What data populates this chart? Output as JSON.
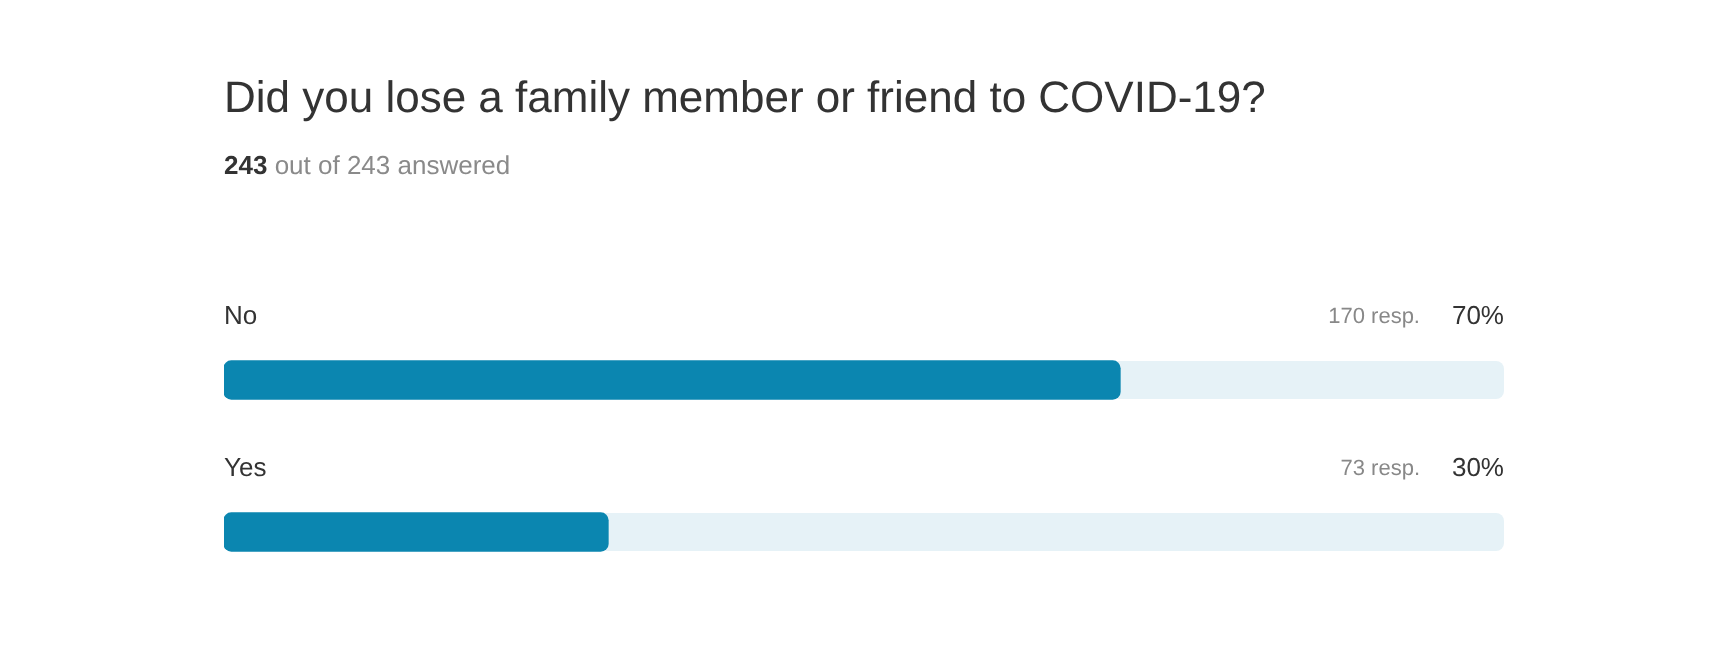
{
  "chart_data": {
    "type": "bar",
    "orientation": "horizontal",
    "title": "Did you lose a family member or friend to COVID-19?",
    "subtitle": "243 out of 243 answered",
    "categories": [
      "No",
      "Yes"
    ],
    "values": [
      70,
      30
    ],
    "color": "#0b86b0",
    "xlim": [
      0,
      100
    ],
    "value_labels": [
      "70%",
      "30%"
    ],
    "annotations": [
      "170 resp.",
      "73 resp."
    ],
    "legend": false
  }
}
